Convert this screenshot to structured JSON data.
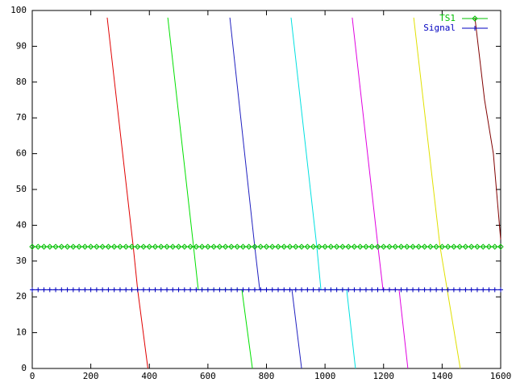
{
  "chart_data": {
    "type": "line",
    "xlim": [
      0,
      1600
    ],
    "xticks": [
      0,
      200,
      400,
      600,
      800,
      1000,
      1200,
      1400,
      1600
    ],
    "ylim": [
      0,
      100
    ],
    "yticks": [
      0,
      10,
      20,
      30,
      40,
      50,
      60,
      70,
      80,
      90,
      100
    ],
    "legend": "top-right",
    "x": [
      0,
      20,
      40,
      60,
      80,
      100,
      120,
      140,
      160,
      180,
      200,
      220,
      240,
      260,
      280,
      300,
      320,
      340,
      360,
      380,
      400,
      420,
      440,
      460,
      480,
      500,
      520,
      540,
      560,
      580,
      600,
      620,
      640,
      660,
      680,
      700,
      720,
      740,
      760,
      780,
      800,
      820,
      840,
      860,
      880,
      900,
      920,
      940,
      960,
      980,
      1000,
      1020,
      1040,
      1060,
      1080,
      1100,
      1120,
      1140,
      1160,
      1180,
      1200,
      1220,
      1240,
      1260,
      1280,
      1300,
      1320,
      1340,
      1360,
      1380,
      1400,
      1420,
      1440,
      1460,
      1480,
      1500,
      1520,
      1540,
      1560,
      1580,
      1600
    ],
    "series": [
      {
        "name": "TS1",
        "color": "#00c000",
        "marker": "diamond",
        "values": [
          34,
          34,
          34,
          34,
          34,
          34,
          34,
          34,
          34,
          34,
          34,
          34,
          34,
          34,
          34,
          34,
          34,
          34,
          34,
          34,
          34,
          34,
          34,
          34,
          34,
          34,
          34,
          34,
          34,
          34,
          34,
          34,
          34,
          34,
          34,
          34,
          34,
          34,
          34,
          34,
          34,
          34,
          34,
          34,
          34,
          34,
          34,
          34,
          34,
          34,
          34,
          34,
          34,
          34,
          34,
          34,
          34,
          34,
          34,
          34,
          34,
          34,
          34,
          34,
          34,
          34,
          34,
          34,
          34,
          34,
          34,
          34,
          34,
          34,
          34,
          34,
          34,
          34,
          34,
          34,
          34
        ]
      },
      {
        "name": "Signal",
        "color": "#0000c0",
        "marker": "plus",
        "values": [
          22,
          22,
          22,
          22,
          22,
          22,
          22,
          22,
          22,
          22,
          22,
          22,
          22,
          22,
          22,
          22,
          22,
          22,
          22,
          22,
          22,
          22,
          22,
          22,
          22,
          22,
          22,
          22,
          22,
          22,
          22,
          22,
          22,
          22,
          22,
          22,
          22,
          22,
          22,
          22,
          22,
          22,
          22,
          22,
          22,
          22,
          22,
          22,
          22,
          22,
          22,
          22,
          22,
          22,
          22,
          22,
          22,
          22,
          22,
          22,
          22,
          22,
          22,
          22,
          22,
          22,
          22,
          22,
          22,
          22,
          22,
          22,
          22,
          22,
          22,
          22,
          22,
          22,
          22,
          22,
          22
        ]
      }
    ],
    "lines": [
      {
        "color": "#e00000",
        "x": [
          256,
          345,
          360,
          395
        ],
        "values": [
          98,
          34,
          22,
          0
        ]
      },
      {
        "color": "#00e000",
        "x": [
          463,
          551,
          567,
          716,
          752
        ],
        "values": [
          98,
          34,
          22,
          22,
          0
        ]
      },
      {
        "color": "#2020c0",
        "x": [
          675,
          760,
          777,
          887,
          920
        ],
        "values": [
          98,
          34,
          22,
          22,
          0
        ]
      },
      {
        "color": "#00e0e0",
        "x": [
          884,
          972,
          986,
          1074,
          1104
        ],
        "values": [
          98,
          34,
          22,
          22,
          0
        ]
      },
      {
        "color": "#e000e0",
        "x": [
          1093,
          1181,
          1198,
          1253,
          1283
        ],
        "values": [
          98,
          34,
          22,
          22,
          0
        ]
      },
      {
        "color": "#e0e000",
        "x": [
          1303,
          1393,
          1462
        ],
        "values": [
          98,
          34,
          0
        ]
      },
      {
        "color": "#800000",
        "x": [
          1512,
          1545,
          1575,
          1600
        ],
        "values": [
          98,
          75,
          60,
          36
        ]
      }
    ]
  }
}
